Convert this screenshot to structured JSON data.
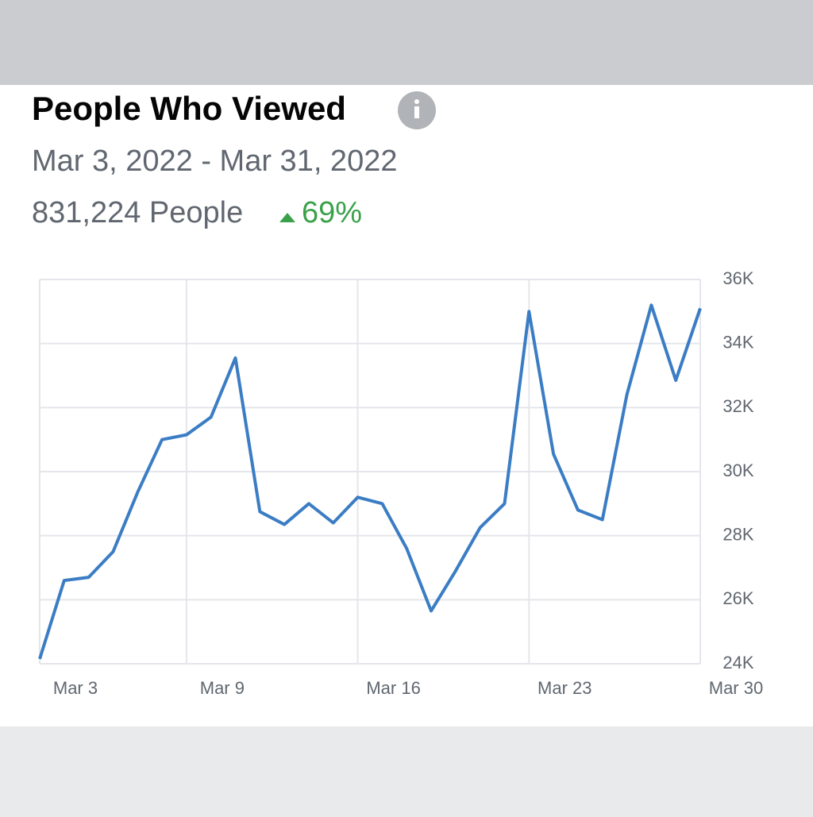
{
  "chart_data": {
    "type": "line",
    "title": "People Who Viewed",
    "subtitle": "Mar 3, 2022 - Mar 31, 2022",
    "summary": "831,224 People",
    "change": "69%",
    "categories": [
      "Mar 3",
      null,
      null,
      null,
      null,
      null,
      "Mar 9",
      null,
      null,
      null,
      null,
      null,
      null,
      "Mar 16",
      null,
      null,
      null,
      null,
      null,
      null,
      "Mar 23",
      null,
      null,
      null,
      null,
      null,
      null,
      "Mar 30"
    ],
    "series": [
      {
        "color": "#3b7dc4",
        "values": [
          24150,
          26600,
          26700,
          27500,
          29350,
          31000,
          31150,
          31700,
          33550,
          28750,
          28350,
          29000,
          28400,
          29200,
          29000,
          27600,
          25650,
          26900,
          28250,
          29000,
          35000,
          30550,
          28800,
          28500,
          32400,
          35200,
          32850,
          35100
        ]
      }
    ],
    "ylim": [
      24000,
      36000
    ],
    "yticks": [
      {
        "value": 24000,
        "label": "24K"
      },
      {
        "value": 26000,
        "label": "26K"
      },
      {
        "value": 28000,
        "label": "28K"
      },
      {
        "value": 30000,
        "label": "30K"
      },
      {
        "value": 32000,
        "label": "32K"
      },
      {
        "value": 34000,
        "label": "34K"
      },
      {
        "value": 36000,
        "label": "36K"
      }
    ],
    "grid": true
  }
}
